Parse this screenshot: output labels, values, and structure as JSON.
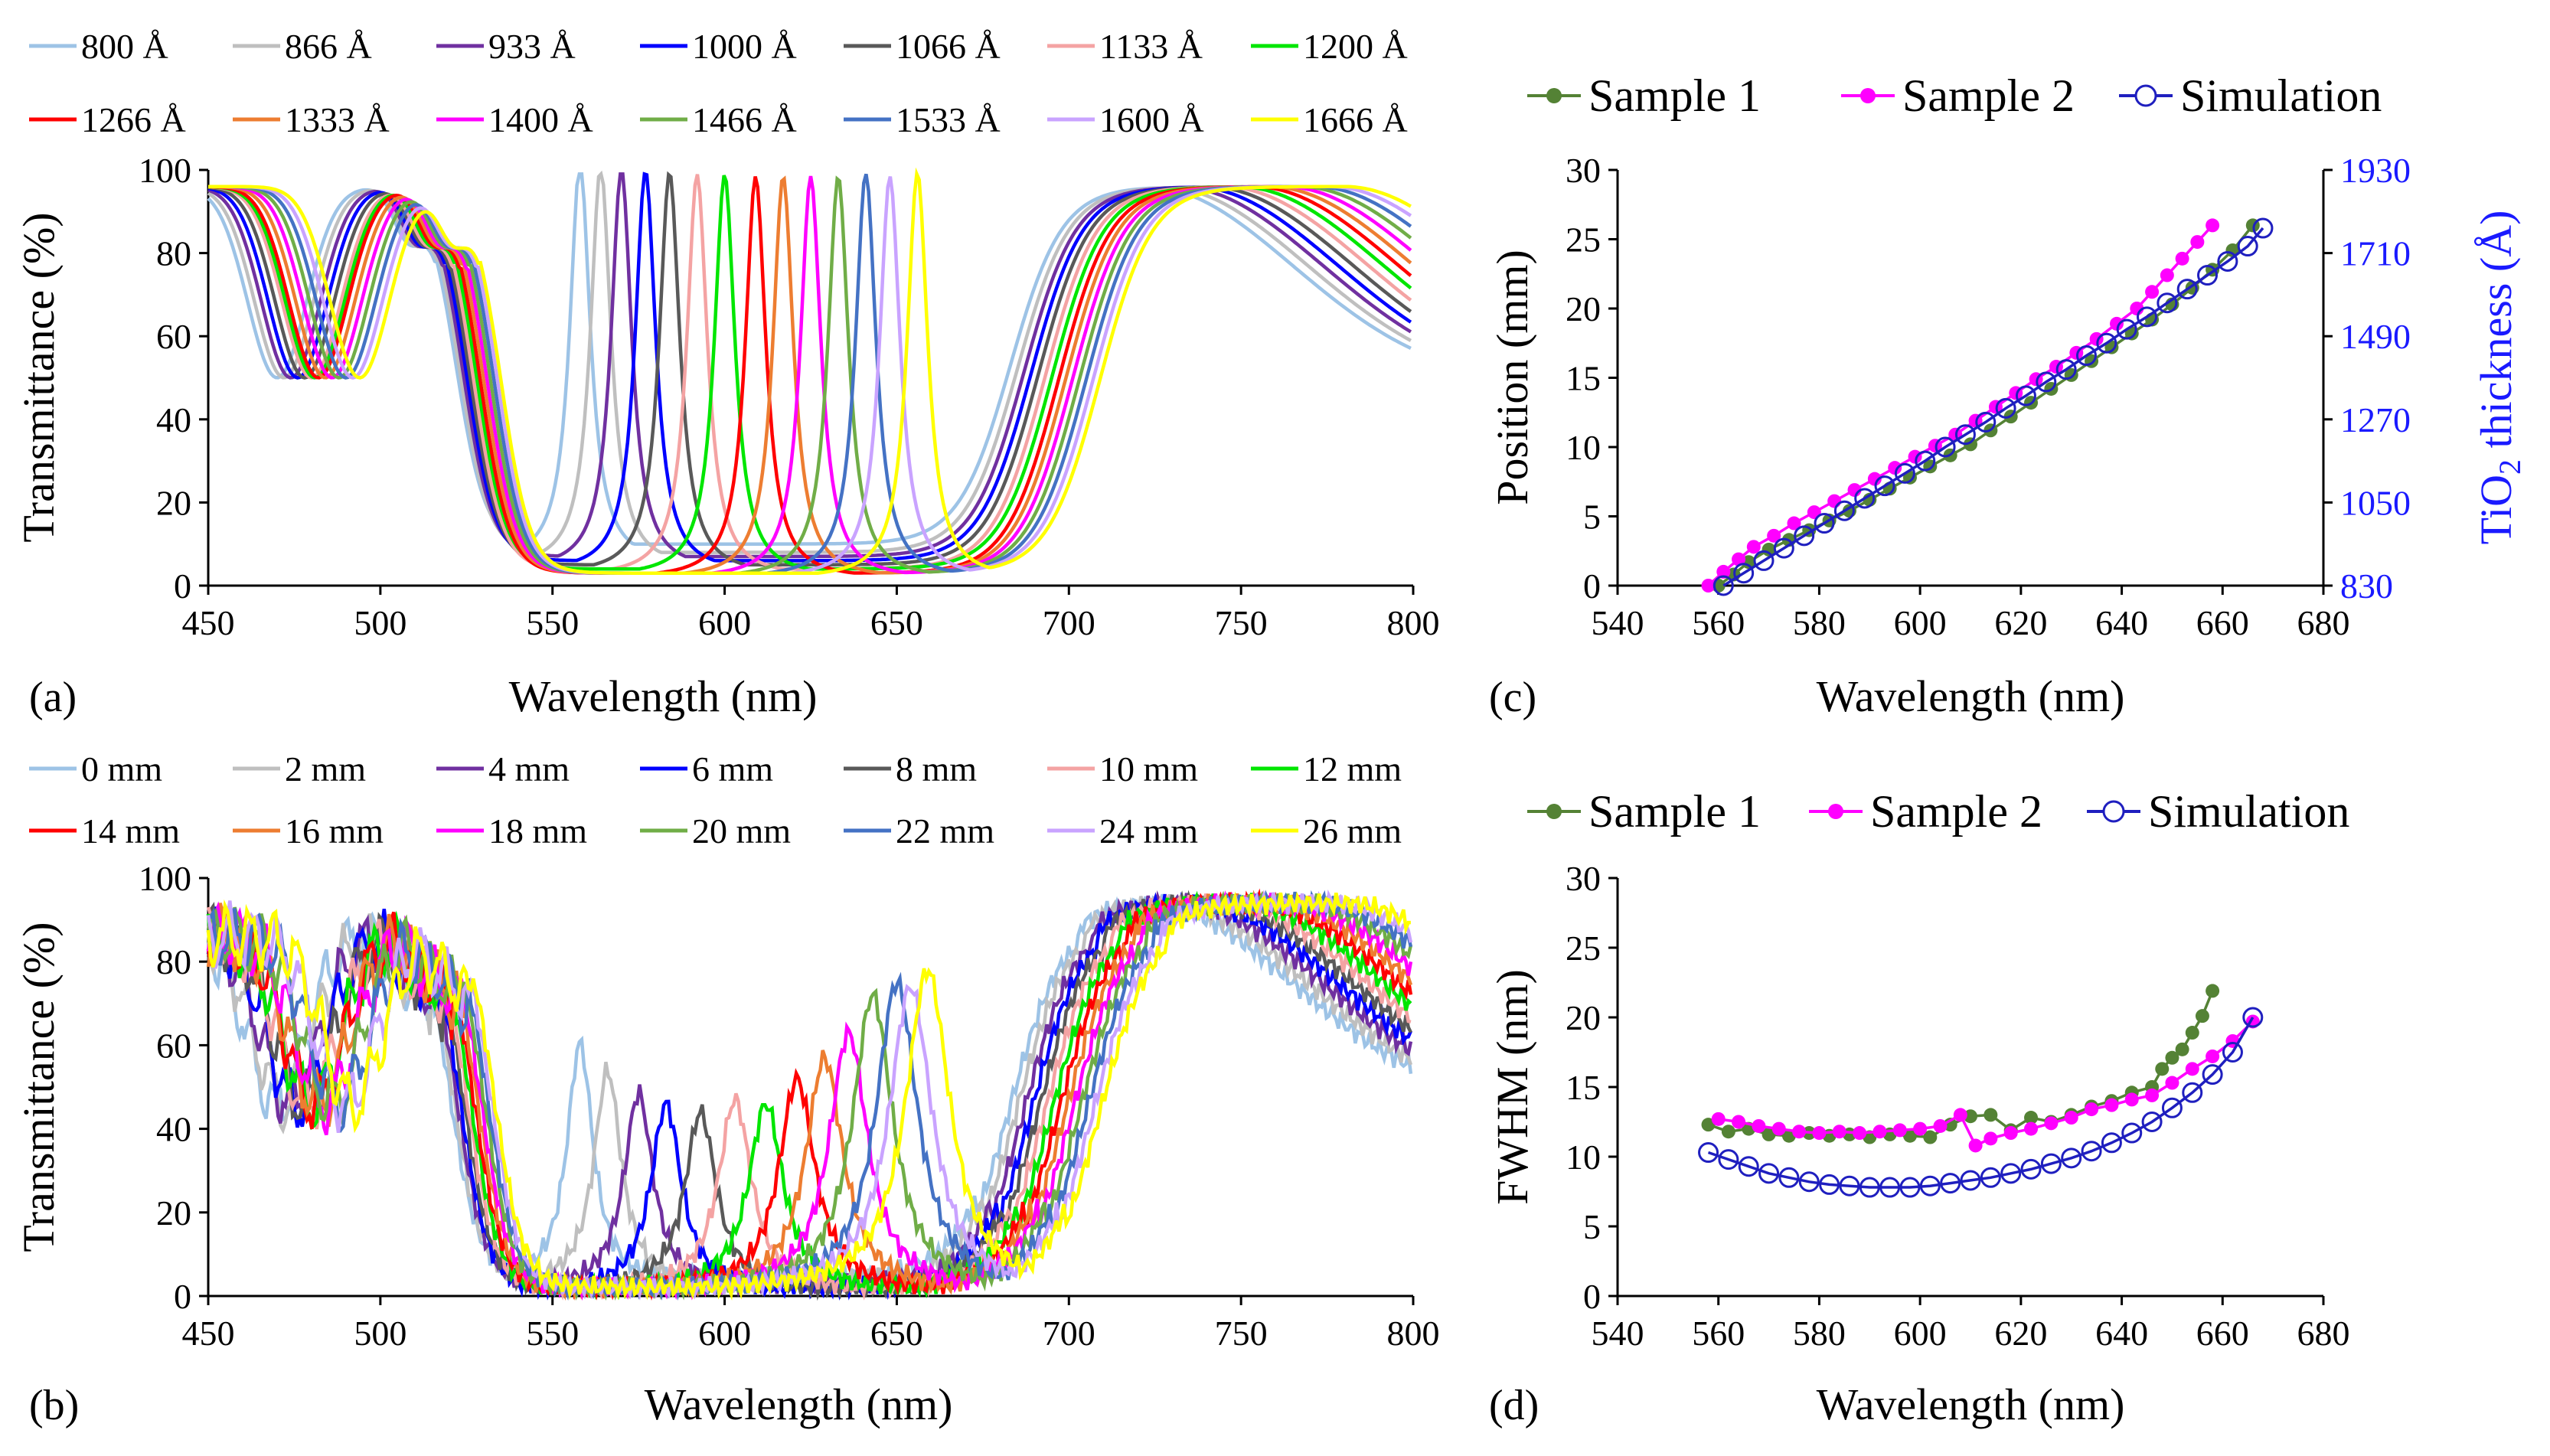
{
  "panels": {
    "a": {
      "label": "(a)",
      "xlabel": "Wavelength (nm)",
      "ylabel": "Transmittance (%)",
      "xlim": [
        450,
        800
      ],
      "ylim": [
        0,
        100
      ],
      "xticks": [
        "450",
        "500",
        "550",
        "600",
        "650",
        "700",
        "750",
        "800"
      ],
      "yticks": [
        "0",
        "20",
        "40",
        "60",
        "80",
        "100"
      ],
      "legend": [
        "800 Å",
        "866 Å",
        "933 Å",
        "1000 Å",
        "1066 Å",
        "1133 Å",
        "1200 Å",
        "1266 Å",
        "1333 Å",
        "1400 Å",
        "1466 Å",
        "1533 Å",
        "1600 Å",
        "1666 Å"
      ]
    },
    "b": {
      "label": "(b)",
      "xlabel": "Wavelength (nm)",
      "ylabel": "Transmittance (%)",
      "xlim": [
        450,
        800
      ],
      "ylim": [
        0,
        100
      ],
      "xticks": [
        "450",
        "500",
        "550",
        "600",
        "650",
        "700",
        "750",
        "800"
      ],
      "yticks": [
        "0",
        "20",
        "40",
        "60",
        "80",
        "100"
      ],
      "legend": [
        "0 mm",
        "2 mm",
        "4 mm",
        "6 mm",
        "8 mm",
        "10 mm",
        "12 mm",
        "14 mm",
        "16 mm",
        "18 mm",
        "20 mm",
        "22 mm",
        "24 mm",
        "26 mm"
      ]
    },
    "c": {
      "label": "(c)",
      "xlabel": "Wavelength (nm)",
      "ylabel": "Position (mm)",
      "y2label_main": "TiO",
      "y2label_sub": "2",
      "y2label_rest": " thickness (Å)",
      "xlim": [
        540,
        680
      ],
      "ylim": [
        0,
        30
      ],
      "xticks": [
        "540",
        "560",
        "580",
        "600",
        "620",
        "640",
        "660",
        "680"
      ],
      "yticks": [
        "0",
        "5",
        "10",
        "15",
        "20",
        "25",
        "30"
      ],
      "y2ticks": [
        "830",
        "1050",
        "1270",
        "1490",
        "1710",
        "1930"
      ],
      "legend": [
        "Sample 1",
        "Sample 2",
        "Simulation"
      ]
    },
    "d": {
      "label": "(d)",
      "xlabel": "Wavelength (nm)",
      "ylabel": "FWHM (nm)",
      "xlim": [
        540,
        680
      ],
      "ylim": [
        0,
        30
      ],
      "xticks": [
        "540",
        "560",
        "580",
        "600",
        "620",
        "640",
        "660",
        "680"
      ],
      "yticks": [
        "0",
        "5",
        "10",
        "15",
        "20",
        "25",
        "30"
      ],
      "legend": [
        "Sample 1",
        "Sample 2",
        "Simulation"
      ]
    }
  },
  "colors": {
    "series": [
      "#9dc3e6",
      "#bfbfbf",
      "#7030a0",
      "#0000ff",
      "#595959",
      "#f4a3a3",
      "#00e600",
      "#ff0000",
      "#ed7d31",
      "#ff00ff",
      "#70ad47",
      "#4472c4",
      "#c9a3ff",
      "#ffff00"
    ],
    "sample1": "#548235",
    "sample2": "#ff00ff",
    "simulation": "#1f1fbf"
  },
  "chart_data": [
    {
      "panel": "a",
      "type": "line",
      "title": "",
      "xlabel": "Wavelength (nm)",
      "ylabel": "Transmittance (%)",
      "xlim": [
        450,
        800
      ],
      "ylim": [
        0,
        100
      ],
      "series": [
        {
          "name": "800 Å",
          "peak_nm": 558,
          "peak_t": 97,
          "stop_lo": 522,
          "stop_hi": 683,
          "dip_nm": 470,
          "stop_bottom": 10
        },
        {
          "name": "866 Å",
          "peak_nm": 564,
          "peak_t": 97,
          "stop_lo": 523,
          "stop_hi": 685,
          "dip_nm": 472,
          "stop_bottom": 8
        },
        {
          "name": "933 Å",
          "peak_nm": 570,
          "peak_t": 97,
          "stop_lo": 524,
          "stop_hi": 687,
          "dip_nm": 474,
          "stop_bottom": 7
        },
        {
          "name": "1000 Å",
          "peak_nm": 577,
          "peak_t": 97,
          "stop_lo": 525,
          "stop_hi": 689,
          "dip_nm": 476,
          "stop_bottom": 6
        },
        {
          "name": "1066 Å",
          "peak_nm": 584,
          "peak_t": 97,
          "stop_lo": 526,
          "stop_hi": 691,
          "dip_nm": 478,
          "stop_bottom": 5
        },
        {
          "name": "1133 Å",
          "peak_nm": 592,
          "peak_t": 97,
          "stop_lo": 527,
          "stop_hi": 693,
          "dip_nm": 480,
          "stop_bottom": 4
        },
        {
          "name": "1200 Å",
          "peak_nm": 600,
          "peak_t": 97,
          "stop_lo": 528,
          "stop_hi": 695,
          "dip_nm": 481,
          "stop_bottom": 4
        },
        {
          "name": "1266 Å",
          "peak_nm": 609,
          "peak_t": 97,
          "stop_lo": 529,
          "stop_hi": 697,
          "dip_nm": 482,
          "stop_bottom": 3
        },
        {
          "name": "1333 Å",
          "peak_nm": 617,
          "peak_t": 97,
          "stop_lo": 530,
          "stop_hi": 699,
          "dip_nm": 484,
          "stop_bottom": 3
        },
        {
          "name": "1400 Å",
          "peak_nm": 625,
          "peak_t": 97,
          "stop_lo": 531,
          "stop_hi": 701,
          "dip_nm": 486,
          "stop_bottom": 3
        },
        {
          "name": "1466 Å",
          "peak_nm": 633,
          "peak_t": 97,
          "stop_lo": 532,
          "stop_hi": 703,
          "dip_nm": 488,
          "stop_bottom": 3
        },
        {
          "name": "1533 Å",
          "peak_nm": 641,
          "peak_t": 98,
          "stop_lo": 533,
          "stop_hi": 705,
          "dip_nm": 490,
          "stop_bottom": 3
        },
        {
          "name": "1600 Å",
          "peak_nm": 648,
          "peak_t": 97,
          "stop_lo": 534,
          "stop_hi": 707,
          "dip_nm": 492,
          "stop_bottom": 3
        },
        {
          "name": "1666 Å",
          "peak_nm": 656,
          "peak_t": 98,
          "stop_lo": 535,
          "stop_hi": 709,
          "dip_nm": 494,
          "stop_bottom": 3
        }
      ]
    },
    {
      "panel": "b",
      "type": "line",
      "title": "",
      "xlabel": "Wavelength (nm)",
      "ylabel": "Transmittance (%)",
      "xlim": [
        450,
        800
      ],
      "ylim": [
        0,
        100
      ],
      "series": [
        {
          "name": "0 mm",
          "peak_nm": 558,
          "peak_t": 58,
          "stop_lo": 520,
          "stop_hi": 683,
          "dip_nm": 470,
          "stop_bottom": 5
        },
        {
          "name": "2 mm",
          "peak_nm": 566,
          "peak_t": 52,
          "stop_lo": 521,
          "stop_hi": 685,
          "dip_nm": 472,
          "stop_bottom": 4
        },
        {
          "name": "4 mm",
          "peak_nm": 575,
          "peak_t": 47,
          "stop_lo": 522,
          "stop_hi": 687,
          "dip_nm": 474,
          "stop_bottom": 3
        },
        {
          "name": "6 mm",
          "peak_nm": 583,
          "peak_t": 45,
          "stop_lo": 523,
          "stop_hi": 689,
          "dip_nm": 476,
          "stop_bottom": 2
        },
        {
          "name": "8 mm",
          "peak_nm": 593,
          "peak_t": 43,
          "stop_lo": 524,
          "stop_hi": 691,
          "dip_nm": 478,
          "stop_bottom": 2
        },
        {
          "name": "10 mm",
          "peak_nm": 603,
          "peak_t": 46,
          "stop_lo": 525,
          "stop_hi": 693,
          "dip_nm": 479,
          "stop_bottom": 2
        },
        {
          "name": "12 mm",
          "peak_nm": 612,
          "peak_t": 45,
          "stop_lo": 526,
          "stop_hi": 695,
          "dip_nm": 480,
          "stop_bottom": 2
        },
        {
          "name": "14 mm",
          "peak_nm": 621,
          "peak_t": 51,
          "stop_lo": 527,
          "stop_hi": 697,
          "dip_nm": 481,
          "stop_bottom": 2
        },
        {
          "name": "16 mm",
          "peak_nm": 629,
          "peak_t": 56,
          "stop_lo": 528,
          "stop_hi": 699,
          "dip_nm": 482,
          "stop_bottom": 2
        },
        {
          "name": "18 mm",
          "peak_nm": 636,
          "peak_t": 62,
          "stop_lo": 529,
          "stop_hi": 701,
          "dip_nm": 484,
          "stop_bottom": 2
        },
        {
          "name": "20 mm",
          "peak_nm": 643,
          "peak_t": 71,
          "stop_lo": 530,
          "stop_hi": 703,
          "dip_nm": 486,
          "stop_bottom": 2
        },
        {
          "name": "22 mm",
          "peak_nm": 650,
          "peak_t": 74,
          "stop_lo": 531,
          "stop_hi": 705,
          "dip_nm": 488,
          "stop_bottom": 2
        },
        {
          "name": "24 mm",
          "peak_nm": 654,
          "peak_t": 73,
          "stop_lo": 532,
          "stop_hi": 707,
          "dip_nm": 490,
          "stop_bottom": 2
        },
        {
          "name": "26 mm",
          "peak_nm": 659,
          "peak_t": 77,
          "stop_lo": 533,
          "stop_hi": 709,
          "dip_nm": 492,
          "stop_bottom": 2
        }
      ]
    },
    {
      "panel": "c",
      "type": "scatter",
      "title": "",
      "xlabel": "Wavelength (nm)",
      "ylabel": "Position (mm)",
      "y2label": "TiO2 thickness (Å)",
      "xlim": [
        540,
        680
      ],
      "ylim": [
        0,
        30
      ],
      "y2lim": [
        830,
        1930
      ],
      "series": [
        {
          "name": "Sample 1",
          "x": [
            560,
            563,
            566,
            570,
            574,
            578,
            582,
            586,
            590,
            594,
            598,
            602,
            606,
            610,
            614,
            618,
            622,
            626,
            630,
            634,
            638,
            642,
            646,
            650,
            654,
            658,
            662,
            666
          ],
          "y": [
            0,
            0.8,
            1.7,
            2.6,
            3.3,
            4.0,
            4.7,
            5.4,
            6.2,
            7.0,
            7.8,
            8.6,
            9.4,
            10.2,
            11.2,
            12.2,
            13.2,
            14.2,
            15.2,
            16.2,
            17.2,
            18.2,
            19.2,
            20.3,
            21.5,
            22.8,
            24.2,
            26.0
          ]
        },
        {
          "name": "Sample 2",
          "x": [
            558,
            561,
            564,
            567,
            571,
            575,
            579,
            583,
            587,
            591,
            595,
            599,
            603,
            607,
            611,
            615,
            619,
            623,
            627,
            631,
            635,
            639,
            643,
            646,
            649,
            652,
            655,
            658
          ],
          "y": [
            0,
            1.0,
            1.9,
            2.8,
            3.6,
            4.5,
            5.3,
            6.1,
            6.9,
            7.7,
            8.5,
            9.3,
            10.1,
            10.9,
            11.9,
            12.9,
            13.9,
            14.9,
            15.8,
            16.8,
            17.8,
            18.9,
            20.0,
            21.2,
            22.4,
            23.6,
            24.8,
            26.0
          ]
        },
        {
          "name": "Simulation",
          "x": [
            561,
            565,
            569,
            573,
            577,
            581,
            585,
            589,
            593,
            597,
            601,
            605,
            609,
            613,
            617,
            621,
            625,
            629,
            633,
            637,
            641,
            645,
            649,
            653,
            657,
            661,
            665,
            668
          ],
          "y": [
            0,
            0.9,
            1.8,
            2.7,
            3.6,
            4.5,
            5.4,
            6.3,
            7.2,
            8.1,
            9.0,
            10.0,
            10.9,
            11.8,
            12.8,
            13.7,
            14.7,
            15.6,
            16.6,
            17.5,
            18.5,
            19.4,
            20.4,
            21.4,
            22.4,
            23.4,
            24.5,
            25.8
          ]
        }
      ]
    },
    {
      "panel": "d",
      "type": "scatter",
      "title": "",
      "xlabel": "Wavelength (nm)",
      "ylabel": "FWHM (nm)",
      "xlim": [
        540,
        680
      ],
      "ylim": [
        0,
        30
      ],
      "series": [
        {
          "name": "Sample 1",
          "x": [
            558,
            562,
            566,
            570,
            574,
            578,
            582,
            586,
            590,
            594,
            598,
            602,
            606,
            610,
            614,
            618,
            622,
            626,
            630,
            634,
            638,
            642,
            646,
            648,
            650,
            652,
            654,
            656,
            658
          ],
          "y": [
            12.3,
            11.8,
            12.0,
            11.6,
            11.5,
            11.7,
            11.5,
            11.6,
            11.4,
            11.6,
            11.5,
            11.4,
            12.3,
            12.9,
            13.0,
            11.9,
            12.8,
            12.5,
            13.0,
            13.6,
            14.0,
            14.6,
            15.0,
            16.3,
            17.1,
            17.7,
            18.9,
            20.1,
            21.9
          ]
        },
        {
          "name": "Sample 2",
          "x": [
            560,
            564,
            568,
            572,
            576,
            580,
            584,
            588,
            592,
            596,
            600,
            604,
            608,
            611,
            614,
            618,
            622,
            626,
            630,
            634,
            638,
            642,
            646,
            650,
            654,
            658,
            662,
            666
          ],
          "y": [
            12.7,
            12.5,
            12.2,
            12.0,
            11.8,
            11.7,
            11.8,
            11.7,
            11.8,
            11.9,
            12.0,
            12.2,
            13.0,
            10.8,
            11.3,
            11.7,
            12.0,
            12.4,
            12.8,
            13.4,
            13.7,
            14.1,
            14.4,
            15.3,
            16.3,
            17.2,
            18.3,
            19.7
          ]
        },
        {
          "name": "Simulation",
          "x": [
            558,
            562,
            566,
            570,
            574,
            578,
            582,
            586,
            590,
            594,
            598,
            602,
            606,
            610,
            614,
            618,
            622,
            626,
            630,
            634,
            638,
            642,
            646,
            650,
            654,
            658,
            662,
            666
          ],
          "y": [
            10.3,
            9.8,
            9.3,
            8.8,
            8.5,
            8.2,
            8.0,
            7.9,
            7.8,
            7.8,
            7.8,
            7.9,
            8.1,
            8.3,
            8.5,
            8.8,
            9.1,
            9.5,
            9.9,
            10.4,
            11.0,
            11.7,
            12.5,
            13.5,
            14.6,
            15.9,
            17.5,
            20.0
          ]
        }
      ]
    }
  ]
}
